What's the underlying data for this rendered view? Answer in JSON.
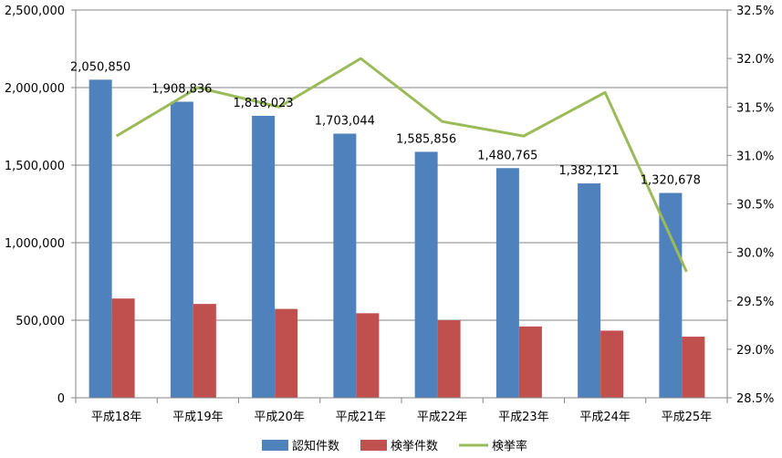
{
  "chart_data": {
    "type": "bar",
    "categories": [
      "平成18年",
      "平成19年",
      "平成20年",
      "平成21年",
      "平成22年",
      "平成23年",
      "平成24年",
      "平成25年"
    ],
    "series": [
      {
        "name": "認知件数",
        "kind": "bar",
        "axis": "left",
        "color": "#4F81BD",
        "values": [
          2050850,
          1908836,
          1818023,
          1703044,
          1585856,
          1480765,
          1382121,
          1320678
        ],
        "data_labels": [
          "2,050,850",
          "1,908,836",
          "1,818,023",
          "1,703,044",
          "1,585,856",
          "1,480,765",
          "1,382,121",
          "1,320,678"
        ]
      },
      {
        "name": "検挙件数",
        "kind": "bar",
        "axis": "left",
        "color": "#C0504D",
        "values": [
          640000,
          605000,
          573000,
          545000,
          500000,
          460000,
          433000,
          394000
        ]
      },
      {
        "name": "検挙率",
        "kind": "line",
        "axis": "right",
        "color": "#9BBB59",
        "values": [
          31.2,
          31.7,
          31.5,
          32.0,
          31.35,
          31.2,
          31.65,
          29.8
        ]
      }
    ],
    "y_left": {
      "range": [
        0,
        2500000
      ],
      "ticks": [
        0,
        500000,
        1000000,
        1500000,
        2000000,
        2500000
      ],
      "tick_labels": [
        "0",
        "500,000",
        "1,000,000",
        "1,500,000",
        "2,000,000",
        "2,500,000"
      ]
    },
    "y_right": {
      "range": [
        28.5,
        32.5
      ],
      "ticks": [
        28.5,
        29.0,
        29.5,
        30.0,
        30.5,
        31.0,
        31.5,
        32.0,
        32.5
      ],
      "tick_labels": [
        "28.5%",
        "29.0%",
        "29.5%",
        "30.0%",
        "30.5%",
        "31.0%",
        "31.5%",
        "32.0%",
        "32.5%"
      ]
    },
    "grid": true,
    "legend_position": "bottom"
  }
}
